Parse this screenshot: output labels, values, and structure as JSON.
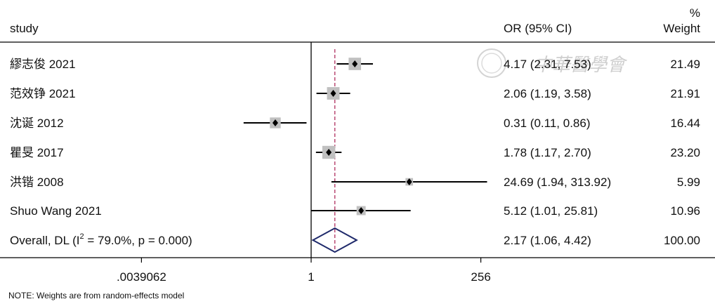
{
  "header": {
    "study_col": "study",
    "ci_col": "OR (95% CI)",
    "weight_col_top": "%",
    "weight_col": "Weight"
  },
  "chart_data": {
    "type": "forest",
    "x_scale": "log2",
    "xlim_log2": [
      -8,
      8
    ],
    "xticks": [
      {
        "value_log2": -8,
        "label": ".0039062"
      },
      {
        "value_log2": 0,
        "label": "1"
      },
      {
        "value_log2": 8,
        "label": "256"
      }
    ],
    "null_line_value": 1,
    "overall_line_value": 2.17,
    "studies": [
      {
        "label": "繆志俊 2021",
        "or": 4.17,
        "lo": 2.31,
        "hi": 7.53,
        "ci_text": "4.17 (2.31, 7.53)",
        "weight": 21.49,
        "weight_text": "21.49"
      },
      {
        "label": "范效铮 2021",
        "or": 2.06,
        "lo": 1.19,
        "hi": 3.58,
        "ci_text": "2.06 (1.19, 3.58)",
        "weight": 21.91,
        "weight_text": "21.91"
      },
      {
        "label": "沈诞 2012",
        "or": 0.31,
        "lo": 0.11,
        "hi": 0.86,
        "ci_text": "0.31 (0.11, 0.86)",
        "weight": 16.44,
        "weight_text": "16.44"
      },
      {
        "label": "瞿旻 2017",
        "or": 1.78,
        "lo": 1.17,
        "hi": 2.7,
        "ci_text": "1.78 (1.17, 2.70)",
        "weight": 23.2,
        "weight_text": "23.20"
      },
      {
        "label": "洪锴 2008",
        "or": 24.69,
        "lo": 1.94,
        "hi": 313.92,
        "ci_text": "24.69 (1.94, 313.92)",
        "weight": 5.99,
        "weight_text": "5.99"
      },
      {
        "label": "Shuo Wang 2021",
        "or": 5.12,
        "lo": 1.01,
        "hi": 25.81,
        "ci_text": "5.12 (1.01, 25.81)",
        "weight": 10.96,
        "weight_text": "10.96"
      }
    ],
    "overall": {
      "label_prefix": "Overall, DL (I",
      "label_sup": "2",
      "label_suffix": " = 79.0%, p = 0.000)",
      "or": 2.17,
      "lo": 1.06,
      "hi": 4.42,
      "ci_text": "2.17 (1.06, 4.42)",
      "weight_text": "100.00"
    },
    "note": "NOTE: Weights are from random-effects model",
    "watermark": "中華醫學會"
  },
  "colors": {
    "diamond": "#1f2a6b",
    "overall_line": "#b03060",
    "box": "#c0c0c0",
    "axis": "#000000"
  }
}
